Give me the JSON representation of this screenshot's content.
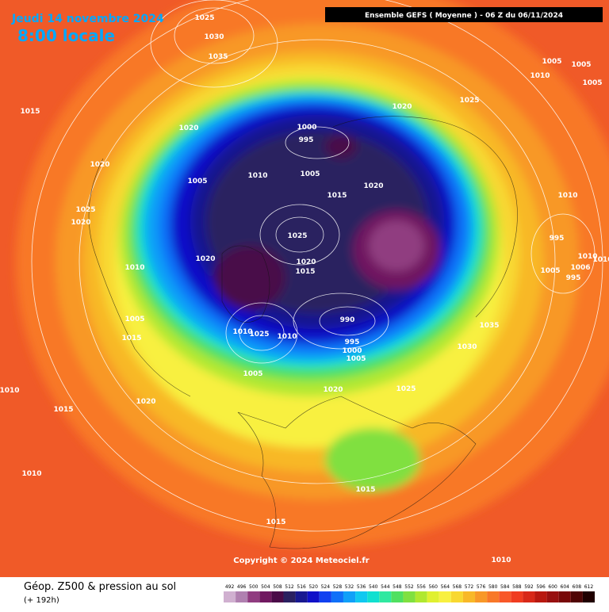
{
  "header": {
    "date": "Jeudi 14 novembre 2024",
    "time": "8:00 locale",
    "model": "Ensemble GEFS  ( Moyenne )  -  06 Z du 06/11/2024"
  },
  "isobar_labels": [
    "1025",
    "1030",
    "1035",
    "1015",
    "1020",
    "1000",
    "995",
    "1020",
    "1025",
    "1005",
    "1005",
    "1010",
    "1005",
    "1020",
    "1005",
    "1010",
    "1005",
    "1015",
    "1020",
    "1010",
    "1025",
    "1020",
    "995",
    "1025",
    "1020",
    "1020",
    "1015",
    "1010",
    "1010",
    "1005",
    "1006",
    "995",
    "1010",
    "990",
    "1005",
    "1035",
    "1015",
    "1010",
    "1025",
    "1010",
    "995",
    "1000",
    "1005",
    "1030",
    "1005",
    "1010",
    "1020",
    "1025",
    "1015",
    "1020",
    "1010",
    "1015",
    "1015",
    "1010"
  ],
  "copyright": "Copyright © 2024 Meteociel.fr",
  "legend": {
    "title": "Géop. Z500 & pression au sol",
    "lead": "(+ 192h)",
    "scale": [
      "492",
      "496",
      "500",
      "504",
      "508",
      "512",
      "516",
      "520",
      "524",
      "528",
      "532",
      "536",
      "540",
      "544",
      "548",
      "552",
      "556",
      "560",
      "564",
      "568",
      "572",
      "576",
      "580",
      "584",
      "588",
      "592",
      "596",
      "600",
      "604",
      "608",
      "612"
    ]
  }
}
